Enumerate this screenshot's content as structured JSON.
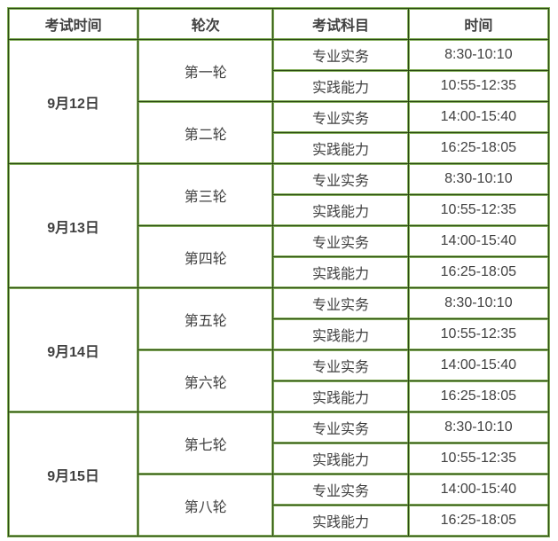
{
  "colors": {
    "border_light_green": "#84ae5c",
    "border_dark_green": "#2b4a12",
    "cell_background": "#ffffff",
    "text": "#404040"
  },
  "table": {
    "headers": [
      "考试时间",
      "轮次",
      "考试科目",
      "时间"
    ],
    "days": [
      {
        "date": "9月12日",
        "rounds": [
          {
            "name": "第一轮",
            "sessions": [
              {
                "subject": "专业实务",
                "time": "8:30-10:10"
              },
              {
                "subject": "实践能力",
                "time": "10:55-12:35"
              }
            ]
          },
          {
            "name": "第二轮",
            "sessions": [
              {
                "subject": "专业实务",
                "time": "14:00-15:40"
              },
              {
                "subject": "实践能力",
                "time": "16:25-18:05"
              }
            ]
          }
        ]
      },
      {
        "date": "9月13日",
        "rounds": [
          {
            "name": "第三轮",
            "sessions": [
              {
                "subject": "专业实务",
                "time": "8:30-10:10"
              },
              {
                "subject": "实践能力",
                "time": "10:55-12:35"
              }
            ]
          },
          {
            "name": "第四轮",
            "sessions": [
              {
                "subject": "专业实务",
                "time": "14:00-15:40"
              },
              {
                "subject": "实践能力",
                "time": "16:25-18:05"
              }
            ]
          }
        ]
      },
      {
        "date": "9月14日",
        "rounds": [
          {
            "name": "第五轮",
            "sessions": [
              {
                "subject": "专业实务",
                "time": "8:30-10:10"
              },
              {
                "subject": "实践能力",
                "time": "10:55-12:35"
              }
            ]
          },
          {
            "name": "第六轮",
            "sessions": [
              {
                "subject": "专业实务",
                "time": "14:00-15:40"
              },
              {
                "subject": "实践能力",
                "time": "16:25-18:05"
              }
            ]
          }
        ]
      },
      {
        "date": "9月15日",
        "rounds": [
          {
            "name": "第七轮",
            "sessions": [
              {
                "subject": "专业实务",
                "time": "8:30-10:10"
              },
              {
                "subject": "实践能力",
                "time": "10:55-12:35"
              }
            ]
          },
          {
            "name": "第八轮",
            "sessions": [
              {
                "subject": "专业实务",
                "time": "14:00-15:40"
              },
              {
                "subject": "实践能力",
                "time": "16:25-18:05"
              }
            ]
          }
        ]
      }
    ]
  }
}
